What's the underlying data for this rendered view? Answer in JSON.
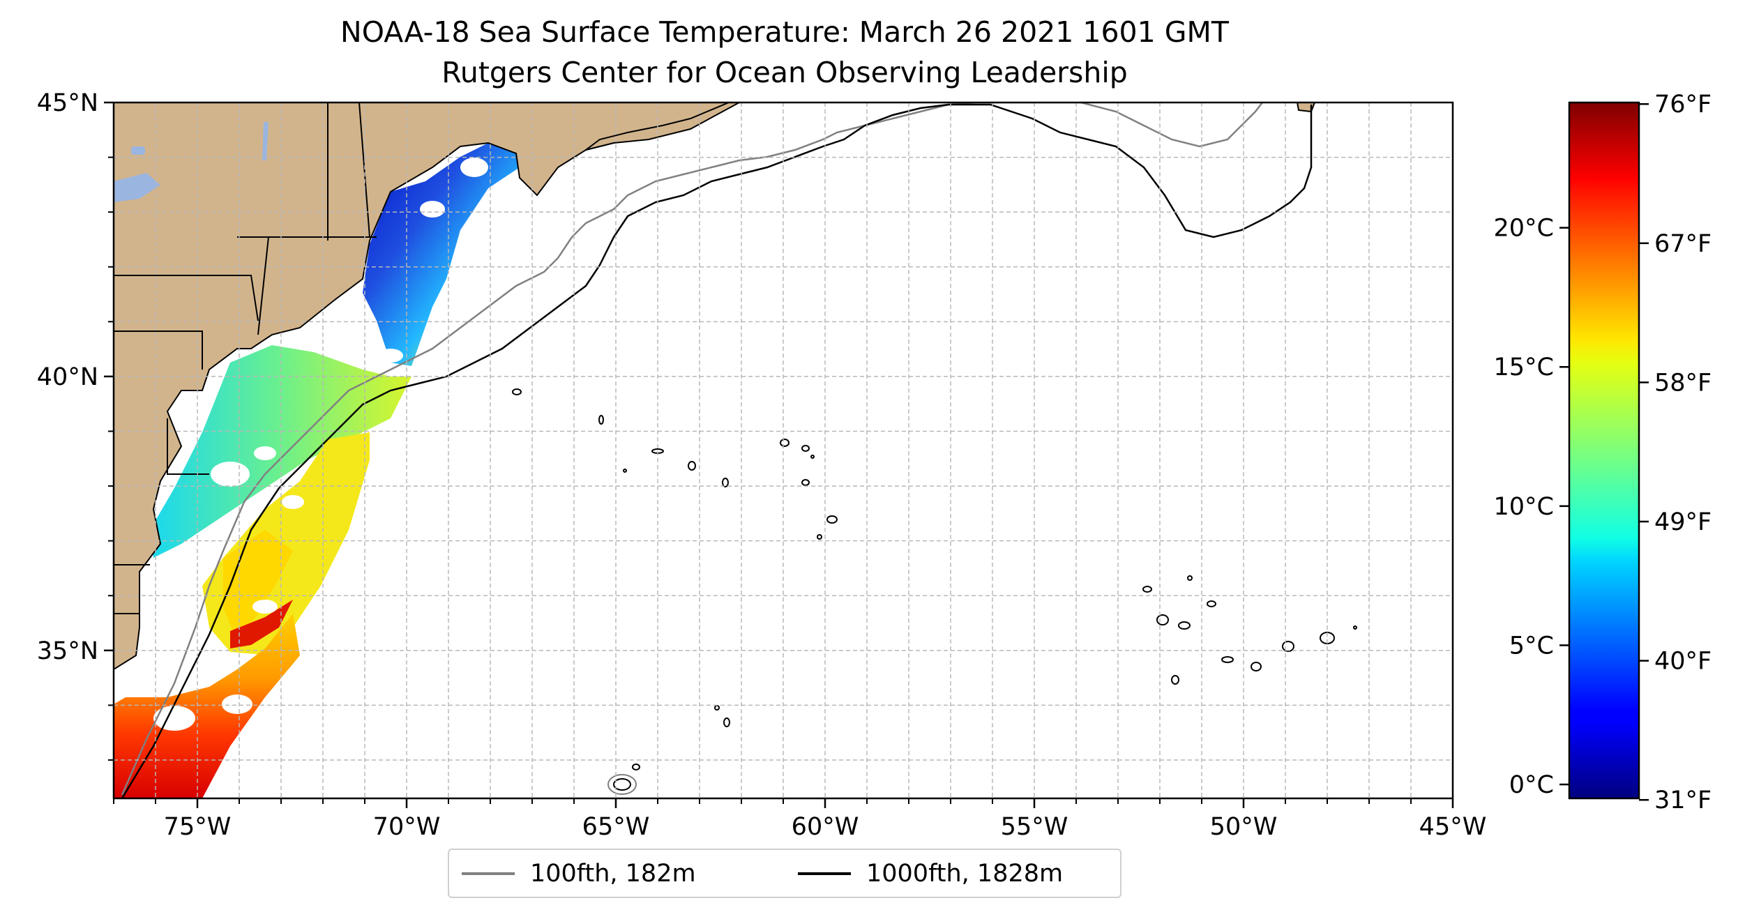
{
  "title": {
    "line1": "NOAA-18 Sea Surface Temperature: March 26 2021 1601 GMT",
    "line2": "Rutgers Center for Ocean Observing Leadership"
  },
  "map": {
    "extent": {
      "lon": [
        -77,
        -45
      ],
      "lat": [
        32.3,
        45
      ]
    },
    "lon_ticks": [
      {
        "value": -75,
        "label": "75°W"
      },
      {
        "value": -70,
        "label": "70°W"
      },
      {
        "value": -65,
        "label": "65°W"
      },
      {
        "value": -60,
        "label": "60°W"
      },
      {
        "value": -55,
        "label": "55°W"
      },
      {
        "value": -50,
        "label": "50°W"
      },
      {
        "value": -45,
        "label": "45°W"
      }
    ],
    "lat_ticks": [
      {
        "value": 35,
        "label": "35°N"
      },
      {
        "value": 40,
        "label": "40°N"
      },
      {
        "value": 45,
        "label": "45°N"
      }
    ],
    "grid": true,
    "land_color": "#d2b48c",
    "lake_color": "#9ab5e0"
  },
  "legend": {
    "placement": "bottom-center",
    "items": [
      {
        "label": "100fth, 182m",
        "color": "#808080"
      },
      {
        "label": "1000fth, 1828m",
        "color": "#000000"
      }
    ]
  },
  "colorbar": {
    "colormap": "jet",
    "range_c": [
      -0.5,
      24.5
    ],
    "celsius_ticks": [
      {
        "value": 0,
        "label": "0°C"
      },
      {
        "value": 5,
        "label": "5°C"
      },
      {
        "value": 10,
        "label": "10°C"
      },
      {
        "value": 15,
        "label": "15°C"
      },
      {
        "value": 20,
        "label": "20°C"
      }
    ],
    "fahrenheit_ticks": [
      {
        "value": 31,
        "label": "31°F"
      },
      {
        "value": 40,
        "label": "40°F"
      },
      {
        "value": 49,
        "label": "49°F"
      },
      {
        "value": 58,
        "label": "58°F"
      },
      {
        "value": 67,
        "label": "67°F"
      },
      {
        "value": 76,
        "label": "76°F"
      }
    ]
  }
}
